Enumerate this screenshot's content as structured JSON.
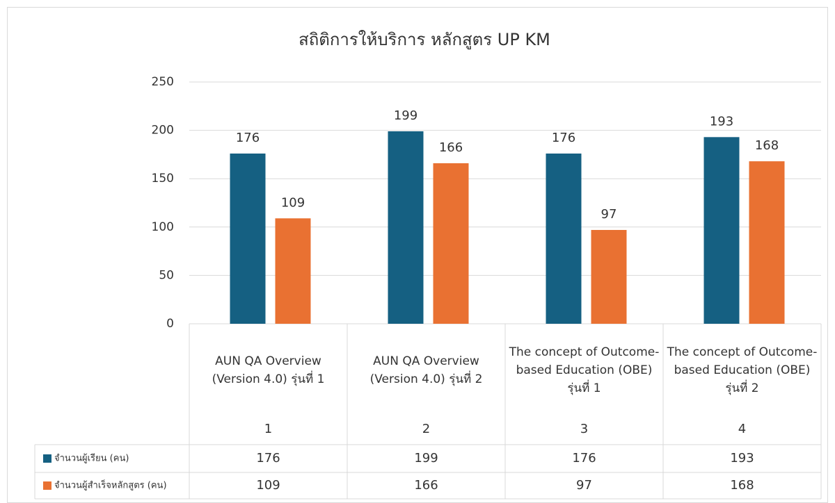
{
  "chart_data": {
    "type": "bar",
    "title": "สถิติการให้บริการ หลักสูตร UP KM",
    "categories": [
      "1",
      "2",
      "3",
      "4"
    ],
    "category_labels": [
      "AUN QA Overview (Version 4.0) รุ่นที่ 1",
      "AUN QA Overview (Version 4.0) รุ่นที่ 2",
      "The concept of Outcome-based Education (OBE) รุ่นที่ 1",
      "The concept of Outcome-based Education (OBE) รุ่นที่ 2"
    ],
    "series": [
      {
        "name": "จำนวนผู้เรียน (คน)",
        "color": "#156082",
        "values": [
          176,
          199,
          176,
          193
        ]
      },
      {
        "name": "จำนวนผู้สำเร็จหลักสูตร (คน)",
        "color": "#e97132",
        "values": [
          109,
          166,
          97,
          168
        ]
      }
    ],
    "ylim": [
      0,
      250
    ],
    "yticks": [
      0,
      50,
      100,
      150,
      200,
      250
    ],
    "grid": true,
    "data_table": true
  }
}
